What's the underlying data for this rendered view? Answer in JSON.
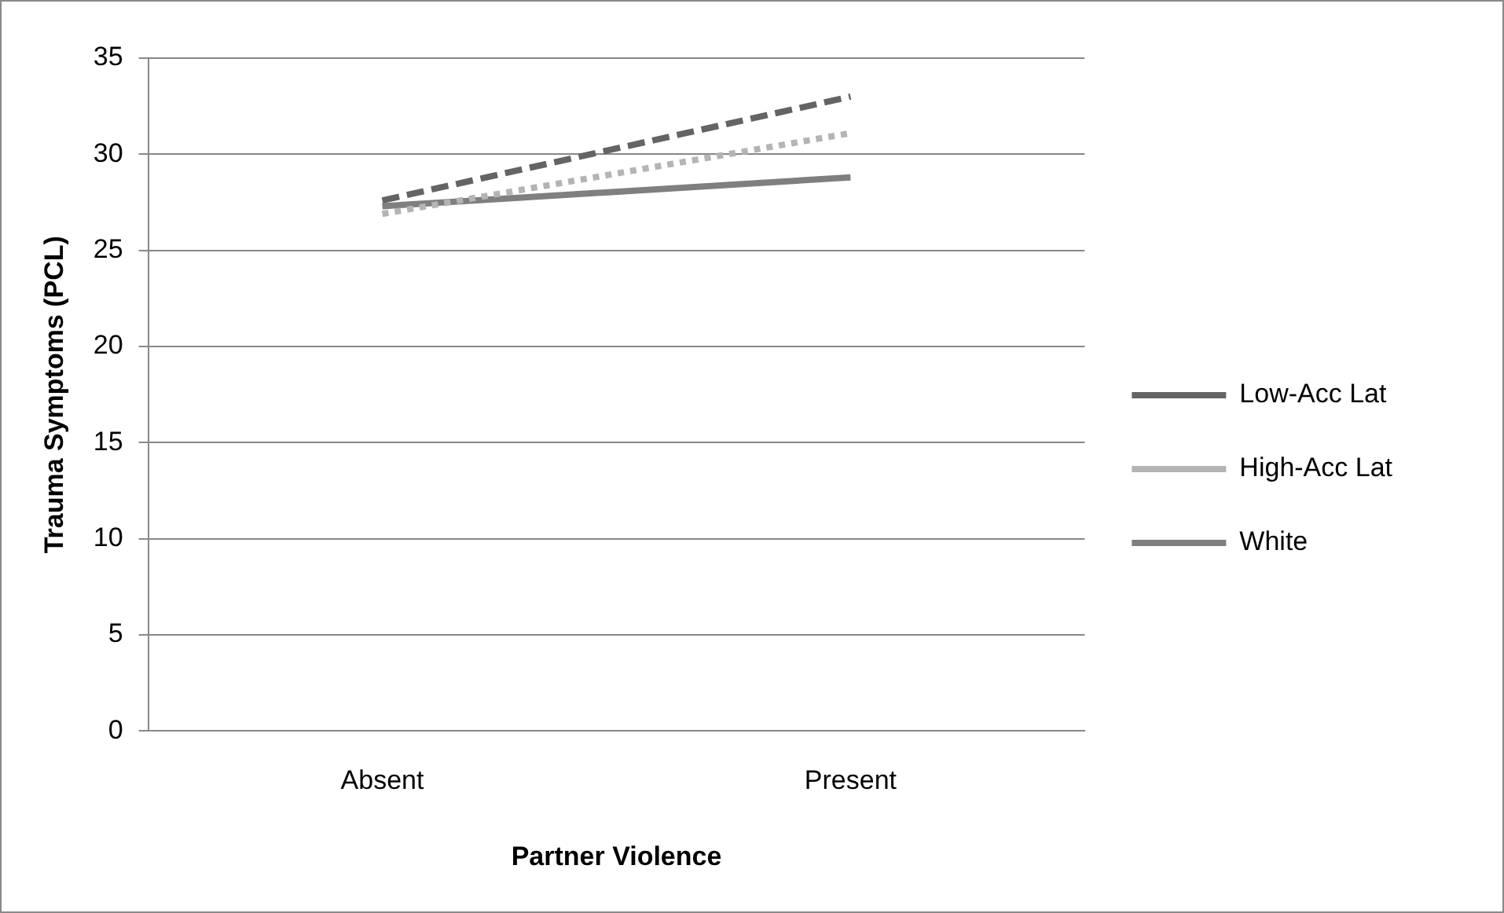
{
  "chart_data": {
    "type": "line",
    "xlabel": "Partner Violence",
    "ylabel": "Trauma Symptoms (PCL)",
    "categories": [
      "Absent",
      "Present"
    ],
    "series": [
      {
        "name": "Low-Acc Lat",
        "color": "#646464",
        "values": [
          27.6,
          33.0
        ],
        "line_style": "dashed"
      },
      {
        "name": "High-Acc Lat",
        "color": "#b4b4b4",
        "values": [
          26.9,
          31.1
        ],
        "line_style": "dotted"
      },
      {
        "name": "White",
        "color": "#7f7f7f",
        "values": [
          27.3,
          28.8
        ],
        "line_style": "solid"
      }
    ],
    "ylim": [
      0,
      35
    ],
    "yticks": [
      0,
      5,
      10,
      15,
      20,
      25,
      30,
      35
    ],
    "grid": "y",
    "legend": "right",
    "marker": "none"
  }
}
